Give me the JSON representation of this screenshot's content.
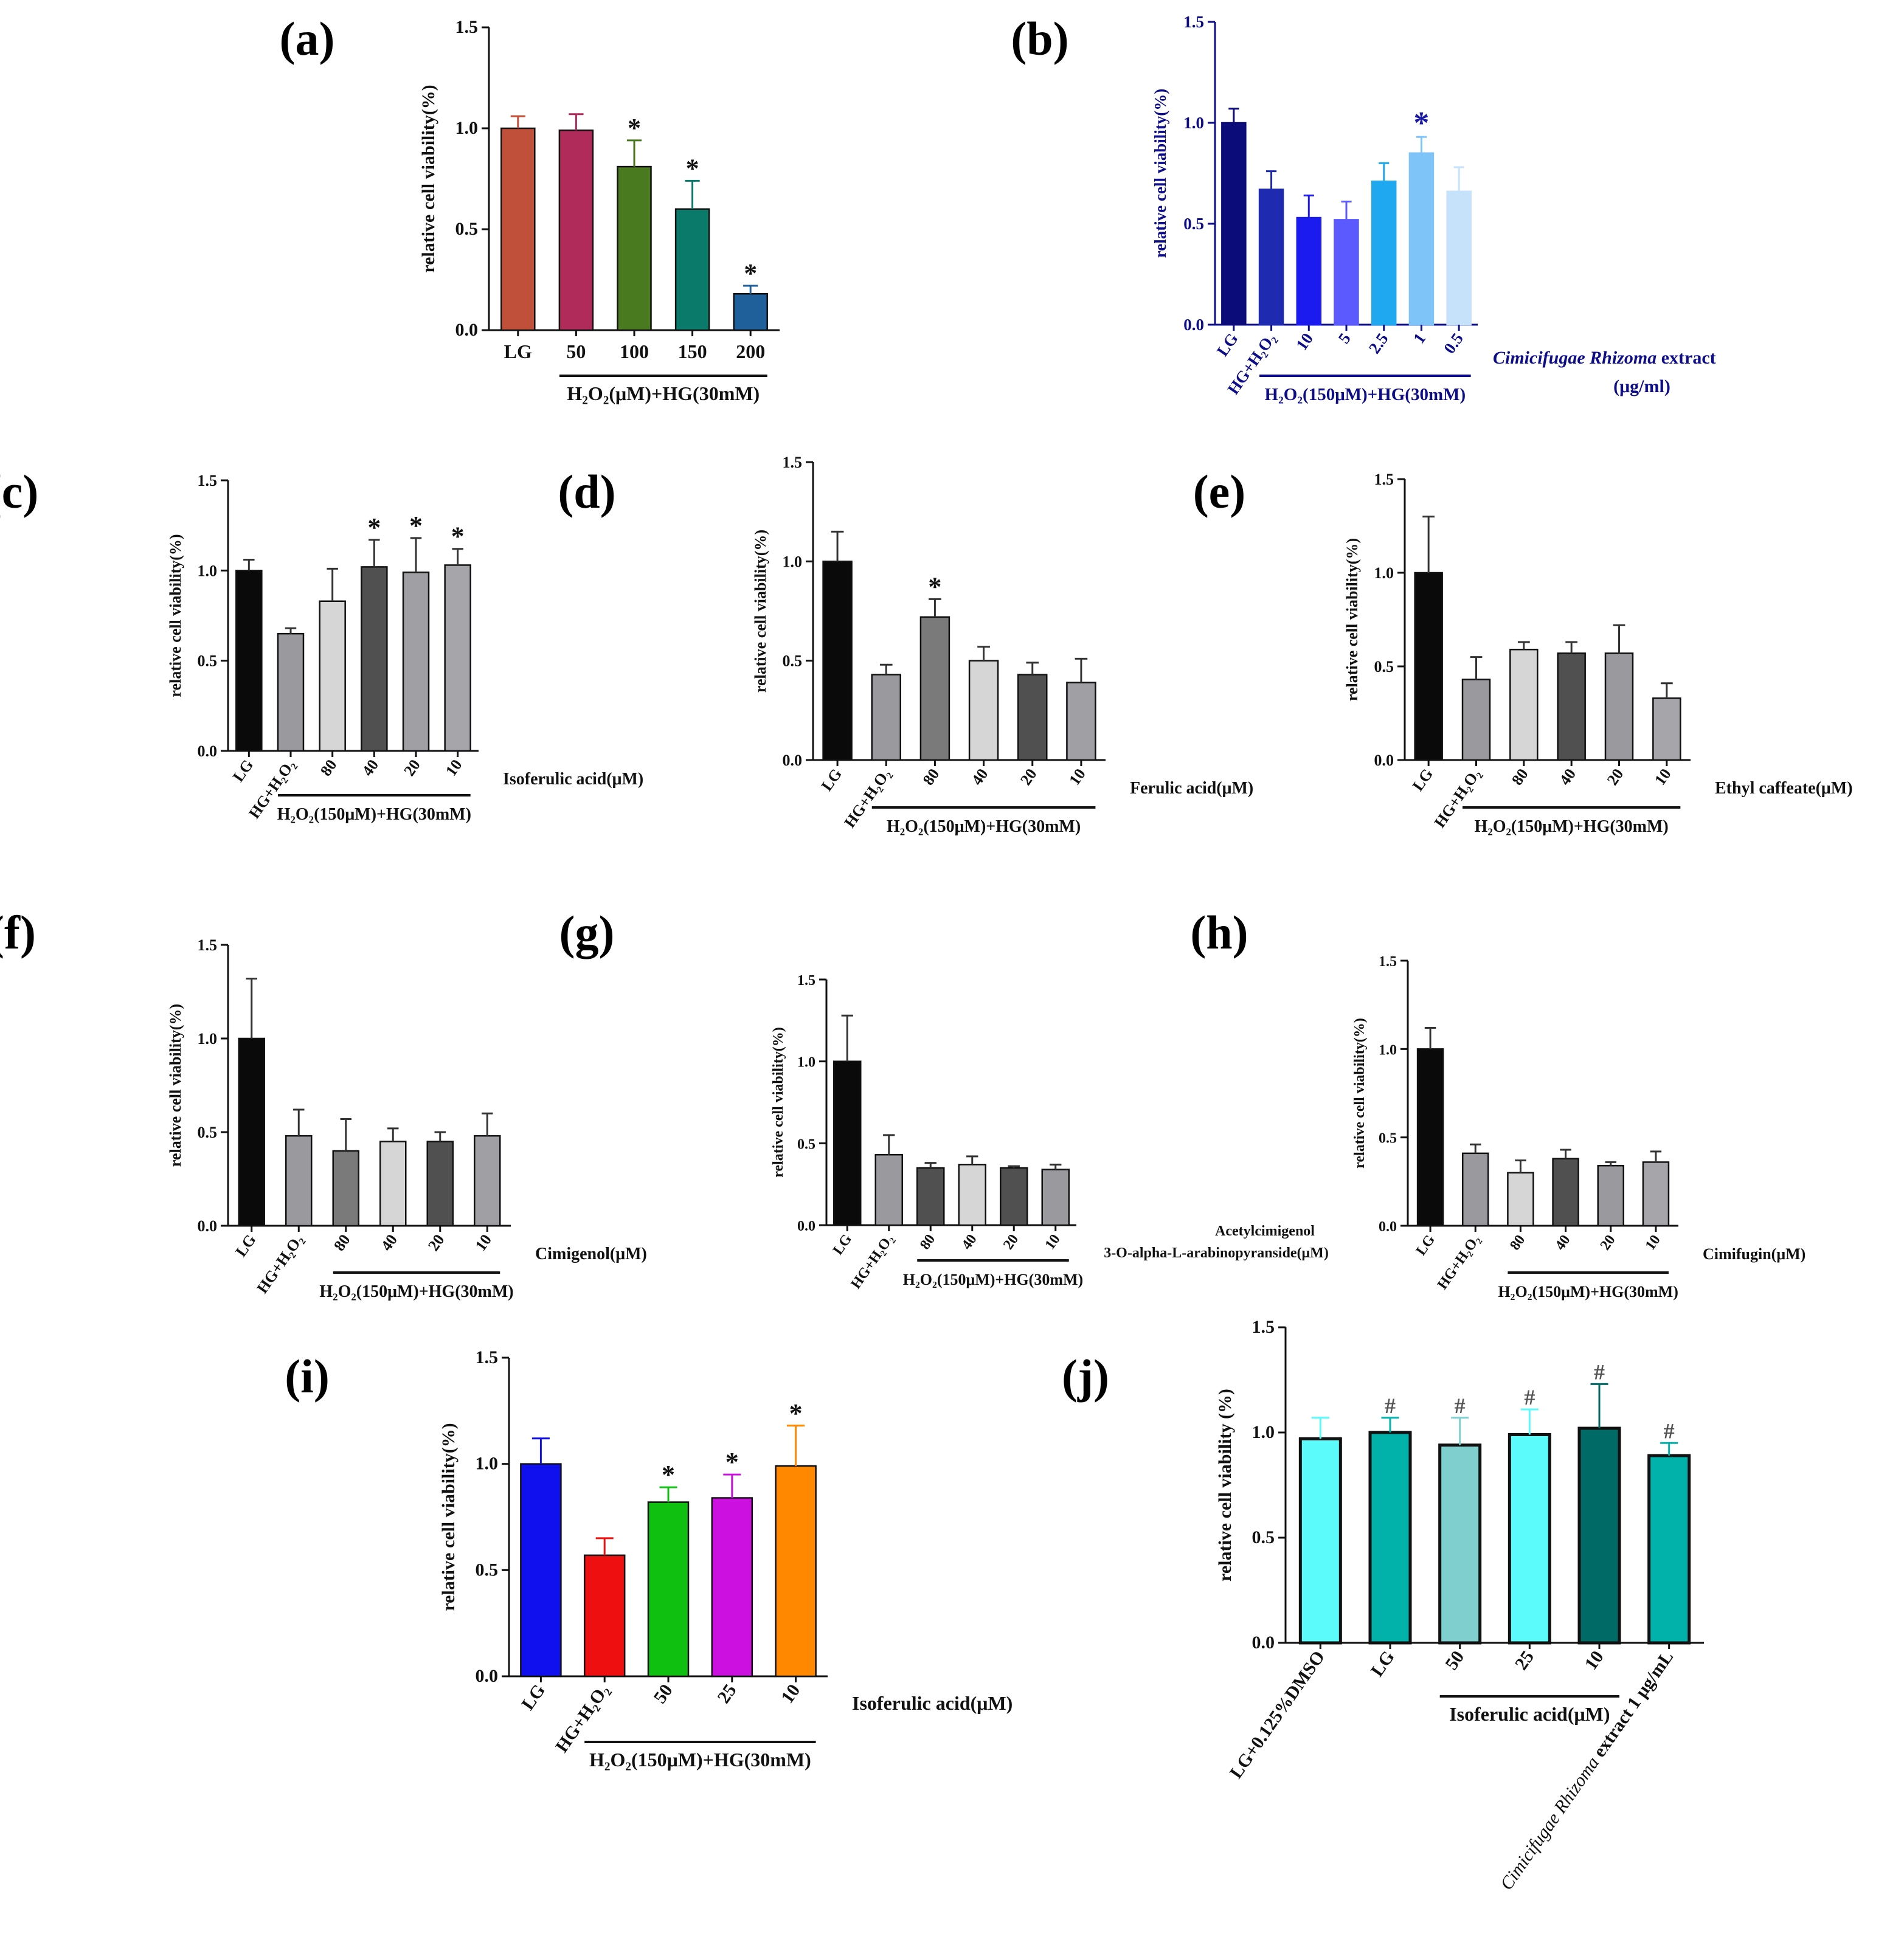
{
  "chart_data": [
    {
      "panel_label": "(a)",
      "type": "bar",
      "ylabel": "relative cell viability(%)",
      "ylim": [
        0,
        1.5
      ],
      "yticks": [
        "0.0",
        "0.5",
        "1.0",
        "1.5"
      ],
      "categories": [
        "LG",
        "50",
        "100",
        "150",
        "200"
      ],
      "values": [
        1.0,
        0.99,
        0.81,
        0.6,
        0.18
      ],
      "errors": [
        0.06,
        0.08,
        0.13,
        0.14,
        0.04
      ],
      "colors": [
        "#c0503a",
        "#b02a5a",
        "#4a7a20",
        "#0a7a6a",
        "#1f5f9a"
      ],
      "stars": [
        "",
        "",
        "*",
        "*",
        "*"
      ],
      "group_label": "H₂O₂(μM)+HG(30mM)",
      "group_range": [
        1,
        4
      ]
    },
    {
      "panel_label": "(b)",
      "type": "bar",
      "ylabel": "relative cell viability(%)",
      "ylim": [
        0,
        1.5
      ],
      "yticks": [
        "0.0",
        "0.5",
        "1.0",
        "1.5"
      ],
      "categories": [
        "LG",
        "HG+H₂O₂",
        "10",
        "5",
        "2.5",
        "1",
        "0.5"
      ],
      "values": [
        1.0,
        0.67,
        0.53,
        0.52,
        0.71,
        0.85,
        0.66
      ],
      "errors": [
        0.07,
        0.09,
        0.11,
        0.09,
        0.09,
        0.08,
        0.12
      ],
      "colors": [
        "#0b0b7a",
        "#1e2ab0",
        "#1b1bf0",
        "#5a5aff",
        "#1fa8f0",
        "#7fc4f8",
        "#c6e2fb"
      ],
      "stars": [
        "",
        "",
        "",
        "",
        "",
        "*",
        ""
      ],
      "group_label": "H₂O₂(150μM)+HG(30mM)",
      "group_range": [
        1,
        6
      ],
      "treatment_label": "Cimicifugae Rhizoma extract",
      "treatment_label_italic": "Cimicifugae Rhizoma",
      "treatment_label_rest": " extract",
      "unit_label": "(μg/ml)"
    },
    {
      "panel_label": "(c)",
      "type": "bar",
      "ylabel": "relative cell viability(%)",
      "ylim": [
        0,
        1.5
      ],
      "yticks": [
        "0.0",
        "0.5",
        "1.0",
        "1.5"
      ],
      "categories": [
        "LG",
        "HG+H₂O₂",
        "80",
        "40",
        "20",
        "10"
      ],
      "values": [
        1.0,
        0.65,
        0.83,
        1.02,
        0.99,
        1.03
      ],
      "errors": [
        0.06,
        0.03,
        0.18,
        0.15,
        0.19,
        0.09
      ],
      "colors": [
        "#0a0a0a",
        "#9a9a9e",
        "#d6d6d6",
        "#505050",
        "#a0a0a4",
        "#a6a6aa"
      ],
      "stars": [
        "",
        "",
        "",
        "*",
        "*",
        "*"
      ],
      "group_label": "H₂O₂(150μM)+HG(30mM)",
      "group_range": [
        1,
        5
      ],
      "treatment_label": "Isoferulic acid(μM)"
    },
    {
      "panel_label": "(d)",
      "type": "bar",
      "ylabel": "relative cell viability(%)",
      "ylim": [
        0,
        1.5
      ],
      "yticks": [
        "0.0",
        "0.5",
        "1.0",
        "1.5"
      ],
      "categories": [
        "LG",
        "HG+H₂O₂",
        "80",
        "40",
        "20",
        "10"
      ],
      "values": [
        1.0,
        0.43,
        0.72,
        0.5,
        0.43,
        0.39
      ],
      "errors": [
        0.15,
        0.05,
        0.09,
        0.07,
        0.06,
        0.12
      ],
      "colors": [
        "#0a0a0a",
        "#9a9a9e",
        "#7a7a7a",
        "#d6d6d6",
        "#505050",
        "#a0a0a4"
      ],
      "stars": [
        "",
        "",
        "*",
        "",
        "",
        ""
      ],
      "group_label": "H₂O₂(150μM)+HG(30mM)",
      "group_range": [
        1,
        5
      ],
      "treatment_label": "Ferulic acid(μM)"
    },
    {
      "panel_label": "(e)",
      "type": "bar",
      "ylabel": "relative cell viability(%)",
      "ylim": [
        0,
        1.5
      ],
      "yticks": [
        "0.0",
        "0.5",
        "1.0",
        "1.5"
      ],
      "categories": [
        "LG",
        "HG+H₂O₂",
        "80",
        "40",
        "20",
        "10"
      ],
      "values": [
        1.0,
        0.43,
        0.59,
        0.57,
        0.57,
        0.33
      ],
      "errors": [
        0.3,
        0.12,
        0.04,
        0.06,
        0.15,
        0.08
      ],
      "colors": [
        "#0a0a0a",
        "#9a9a9e",
        "#d6d6d6",
        "#505050",
        "#9a9a9e",
        "#a6a6aa"
      ],
      "stars": [
        "",
        "",
        "",
        "",
        "",
        ""
      ],
      "group_label": "H₂O₂(150μM)+HG(30mM)",
      "group_range": [
        1,
        5
      ],
      "treatment_label": "Ethyl caffeate(μM)"
    },
    {
      "panel_label": "(f)",
      "type": "bar",
      "ylabel": "relative cell viability(%)",
      "ylim": [
        0,
        1.5
      ],
      "yticks": [
        "0.0",
        "0.5",
        "1.0",
        "1.5"
      ],
      "categories": [
        "LG",
        "HG+H₂O₂",
        "80",
        "40",
        "20",
        "10"
      ],
      "values": [
        1.0,
        0.48,
        0.4,
        0.45,
        0.45,
        0.48
      ],
      "errors": [
        0.32,
        0.14,
        0.17,
        0.07,
        0.05,
        0.12
      ],
      "colors": [
        "#0a0a0a",
        "#9a9a9e",
        "#7a7a7a",
        "#d6d6d6",
        "#505050",
        "#a0a0a4"
      ],
      "stars": [
        "",
        "",
        "",
        "",
        "",
        ""
      ],
      "group_label": "H₂O₂(150μM)+HG(30mM)",
      "group_range": [
        2,
        5
      ],
      "treatment_label": "Cimigenol(μM)"
    },
    {
      "panel_label": "(g)",
      "type": "bar",
      "ylabel": "relative cell viability(%)",
      "ylim": [
        0,
        1.5
      ],
      "yticks": [
        "0.0",
        "0.5",
        "1.0",
        "1.5"
      ],
      "categories": [
        "LG",
        "HG+H₂O₂",
        "80",
        "40",
        "20",
        "10"
      ],
      "values": [
        1.0,
        0.43,
        0.35,
        0.37,
        0.35,
        0.34
      ],
      "errors": [
        0.28,
        0.12,
        0.03,
        0.05,
        0.01,
        0.03
      ],
      "colors": [
        "#0a0a0a",
        "#9a9a9e",
        "#505050",
        "#d6d6d6",
        "#505050",
        "#9a9a9e"
      ],
      "stars": [
        "",
        "",
        "",
        "",
        "",
        ""
      ],
      "group_label": "H₂O₂(150μM)+HG(30mM)",
      "group_range": [
        2,
        5
      ],
      "treatment_label_line1": "Acetylcimigenol",
      "treatment_label_line2": "3-O-alpha-L-arabinopyranside(μM)"
    },
    {
      "panel_label": "(h)",
      "type": "bar",
      "ylabel": "relative cell viability(%)",
      "ylim": [
        0,
        1.5
      ],
      "yticks": [
        "0.0",
        "0.5",
        "1.0",
        "1.5"
      ],
      "categories": [
        "LG",
        "HG+H₂O₂",
        "80",
        "40",
        "20",
        "10"
      ],
      "values": [
        1.0,
        0.41,
        0.3,
        0.38,
        0.34,
        0.36
      ],
      "errors": [
        0.12,
        0.05,
        0.07,
        0.05,
        0.02,
        0.06
      ],
      "colors": [
        "#0a0a0a",
        "#9a9a9e",
        "#d6d6d6",
        "#505050",
        "#9a9a9e",
        "#a6a6aa"
      ],
      "stars": [
        "",
        "",
        "",
        "",
        "",
        ""
      ],
      "group_label": "H₂O₂(150μM)+HG(30mM)",
      "group_range": [
        2,
        5
      ],
      "treatment_label": "Cimifugin(μM)"
    },
    {
      "panel_label": "(i)",
      "type": "bar",
      "ylabel": "relative cell viability(%)",
      "ylim": [
        0,
        1.5
      ],
      "yticks": [
        "0.0",
        "0.5",
        "1.0",
        "1.5"
      ],
      "categories": [
        "LG",
        "HG+H₂O₂",
        "50",
        "25",
        "10"
      ],
      "values": [
        1.0,
        0.57,
        0.82,
        0.84,
        0.99
      ],
      "errors": [
        0.12,
        0.08,
        0.07,
        0.11,
        0.19
      ],
      "colors": [
        "#1010ee",
        "#ee1010",
        "#10c010",
        "#cc10e0",
        "#ff8800"
      ],
      "stars": [
        "",
        "",
        "*",
        "*",
        "*"
      ],
      "group_label": "H₂O₂(150μM)+HG(30mM)",
      "group_range": [
        1,
        4
      ],
      "treatment_label": "Isoferulic acid(μM)"
    },
    {
      "panel_label": "(j)",
      "type": "bar",
      "ylabel": "relative cell viability (%)",
      "ylim": [
        0,
        1.5
      ],
      "yticks": [
        "0.0",
        "0.5",
        "1.0",
        "1.5"
      ],
      "categories": [
        "LG+0.125%DMSO",
        "LG",
        "50",
        "25",
        "10",
        "Cimicifugae Rhizoma extract 1 μg/mL"
      ],
      "category_italic_part": "Cimicifugae Rhizoma",
      "category_rest_part": " extract 1 μg/mL",
      "values": [
        0.97,
        1.0,
        0.94,
        0.99,
        1.02,
        0.89
      ],
      "errors": [
        0.1,
        0.07,
        0.13,
        0.12,
        0.21,
        0.06
      ],
      "colors": [
        "#5cfbfb",
        "#00b2aa",
        "#7fcfcf",
        "#5cfbfb",
        "#006a66",
        "#00b2aa"
      ],
      "stars": [
        "",
        "#",
        "#",
        "#",
        "#",
        "#"
      ],
      "group_label": "Isoferulic acid(μM)",
      "group_range": [
        2,
        4
      ]
    }
  ]
}
